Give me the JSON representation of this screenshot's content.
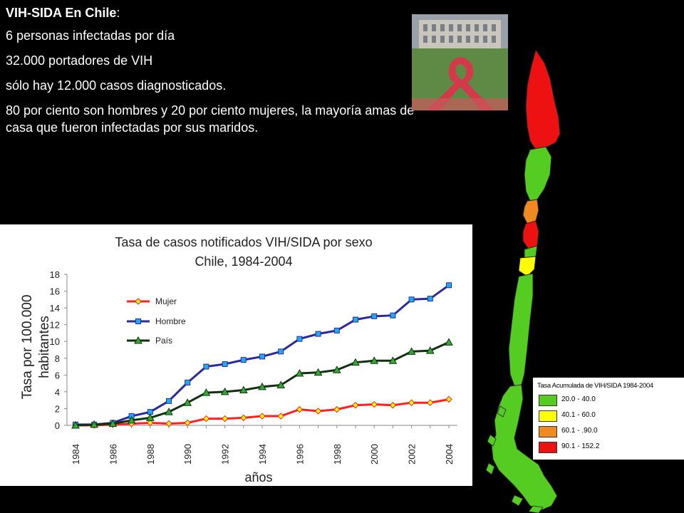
{
  "slide": {
    "title": "VIH-SIDA En Chile",
    "title_suffix": ":",
    "lines": [
      "6 personas infectadas por día",
      "32.000 portadores de VIH",
      "sólo hay 12.000 casos diagnosticados."
    ],
    "paragraph": "80 por ciento son hombres y 20 por ciento mujeres, la mayoría amas de casa que fueron infectadas por sus maridos."
  },
  "colors": {
    "background": "#000000",
    "mujer": "#ff2020",
    "hombre": "#2a2a9a",
    "pais": "#103010",
    "map_green": "#55cc22",
    "map_yellow": "#ffff00",
    "map_orange": "#f08a20",
    "map_red": "#ee1111"
  },
  "photo": {
    "icon": "aids-ribbon-crowd-photo"
  },
  "legend": {
    "title": "Tasa Acumulada de VIH/SIDA 1984-2004",
    "items": [
      {
        "label": "20.0 - 40.0",
        "color": "#55cc22"
      },
      {
        "label": "40.1 - 60.0",
        "color": "#ffff00"
      },
      {
        "label": "60.1 - .90.0",
        "color": "#f08a20"
      },
      {
        "label": "90.1 - 152.2",
        "color": "#ee1111"
      }
    ]
  },
  "chart_data": {
    "type": "line",
    "title_line1": "Tasa de casos notificados VIH/SIDA por sexo",
    "title_line2": "Chile, 1984-2004",
    "xlabel": "años",
    "ylabel_line1": "Tasa por 100.000",
    "ylabel_line2": "habitantes",
    "ylim": [
      0,
      18
    ],
    "yticks": [
      "0",
      "2",
      "4",
      "6",
      "8",
      "10",
      "12",
      "14",
      "16",
      "18"
    ],
    "x": [
      1984,
      1985,
      1986,
      1987,
      1988,
      1989,
      1990,
      1991,
      1992,
      1993,
      1994,
      1995,
      1996,
      1997,
      1998,
      1999,
      2000,
      2001,
      2002,
      2003,
      2004
    ],
    "xtick_labels": [
      "1984",
      "1986",
      "1988",
      "1990",
      "1992",
      "1994",
      "1996",
      "1998",
      "2000",
      "2002",
      "2004"
    ],
    "legend_position": "top-left",
    "grid": false,
    "series": [
      {
        "name": "Mujer",
        "marker": "diamond",
        "color": "#ff2020",
        "values": [
          0.0,
          0.0,
          0.1,
          0.2,
          0.3,
          0.2,
          0.3,
          0.8,
          0.8,
          0.9,
          1.1,
          1.1,
          1.9,
          1.7,
          1.9,
          2.4,
          2.5,
          2.4,
          2.7,
          2.7,
          3.1
        ]
      },
      {
        "name": "Hombre",
        "marker": "square",
        "color": "#2a2a9a",
        "values": [
          0.1,
          0.1,
          0.3,
          1.1,
          1.6,
          2.9,
          5.1,
          7.0,
          7.3,
          7.8,
          8.2,
          8.8,
          10.3,
          10.9,
          11.3,
          12.6,
          13.0,
          13.1,
          15.0,
          15.1,
          16.7
        ]
      },
      {
        "name": "País",
        "marker": "triangle",
        "color": "#103010",
        "values": [
          0.0,
          0.1,
          0.2,
          0.6,
          0.9,
          1.6,
          2.7,
          3.9,
          4.0,
          4.2,
          4.6,
          4.8,
          6.2,
          6.3,
          6.6,
          7.5,
          7.7,
          7.7,
          8.8,
          8.9,
          9.9
        ]
      }
    ]
  }
}
